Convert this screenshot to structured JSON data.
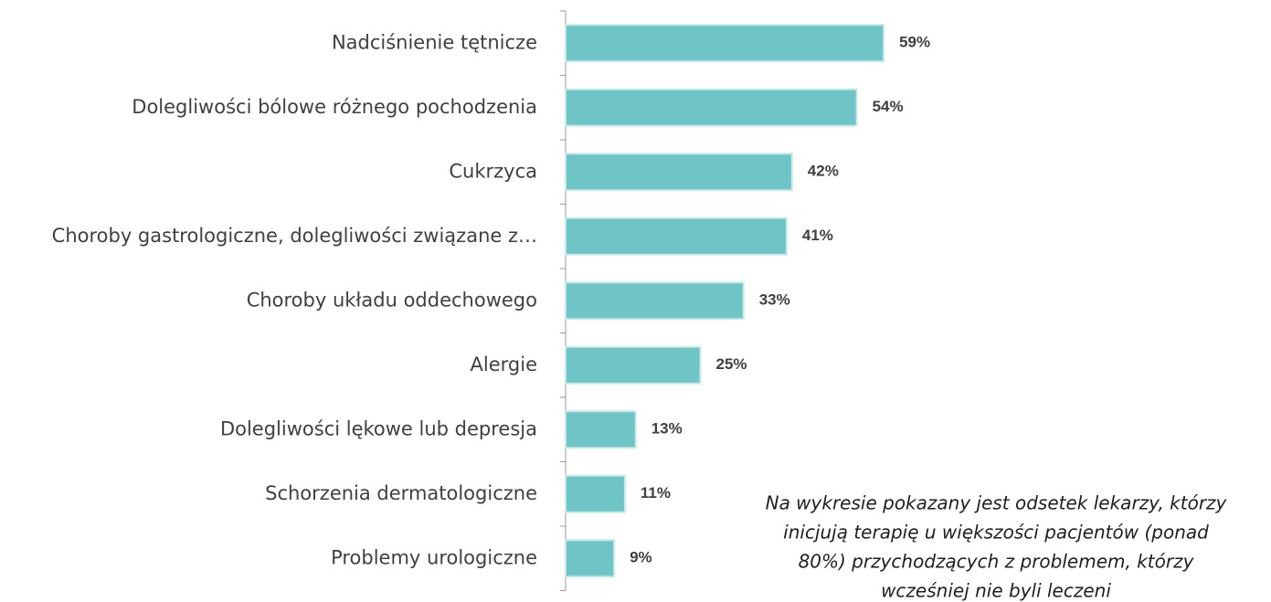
{
  "chart_data": {
    "type": "bar",
    "orientation": "horizontal",
    "categories": [
      "Nadciśnienie tętnicze",
      "Dolegliwości bólowe różnego pochodzenia",
      "Cukrzyca",
      "Choroby gastrologiczne,  dolegliwości związane z…",
      "Choroby układu oddechowego",
      "Alergie",
      "Dolegliwości lękowe lub depresja",
      "Schorzenia dermatologiczne",
      "Problemy urologiczne"
    ],
    "values": [
      59,
      54,
      42,
      41,
      33,
      25,
      13,
      11,
      9
    ],
    "value_labels": [
      "59%",
      "54%",
      "42%",
      "41%",
      "33%",
      "25%",
      "13%",
      "11%",
      "9%"
    ],
    "color": "#6fc5c5",
    "annotation": [
      "Na wykresie pokazany jest odsetek lekarzy, którzy",
      "inicjują terapię u większości pacjentów (ponad",
      "80%) przychodzących z problemem, którzy",
      "wcześniej nie byli leczeni"
    ]
  }
}
